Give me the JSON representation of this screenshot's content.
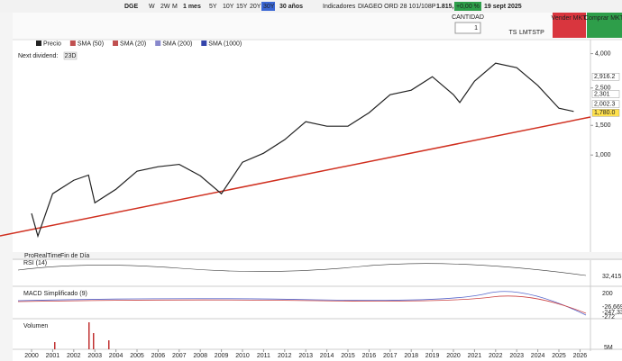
{
  "toolbar": {
    "symbol": "DGE",
    "periods": [
      "W",
      "2W",
      "M"
    ],
    "interval": "1 mes",
    "ranges": [
      "5Y",
      "10Y",
      "15Y",
      "20Y",
      "30Y"
    ],
    "range": "30 años",
    "indicators": "Indicadores"
  },
  "quote": {
    "name": "DIAGEO ORD 28 101/108P",
    "price": "1.815,5(c)",
    "change": "+0,00 %",
    "date": "19 sept 2025"
  },
  "order": {
    "qty_label": "CANTIDAD",
    "qty": "1",
    "types": [
      "TS",
      "LMT",
      "STP"
    ],
    "sell": "Vender MKT",
    "buy": "Comprar MKT"
  },
  "legend": [
    {
      "name": "Precio",
      "color": "#222"
    },
    {
      "name": "SMA (50)",
      "color": "#c05050"
    },
    {
      "name": "SMA (20)",
      "color": "#c05050"
    },
    {
      "name": "SMA (200)",
      "color": "#8888cc"
    },
    {
      "name": "SMA (1000)",
      "color": "#3344aa"
    }
  ],
  "dividend": {
    "label": "Next dividend:",
    "value": "23D"
  },
  "chart_data": {
    "type": "line",
    "log_scale": true,
    "color": "#222",
    "x": [
      2000,
      2000.3,
      2001,
      2002,
      2002.7,
      2003,
      2004,
      2005,
      2006,
      2007,
      2008,
      2009,
      2010,
      2011,
      2012,
      2013,
      2014,
      2015,
      2016,
      2017,
      2018,
      2019,
      2020,
      2020.3,
      2021,
      2022,
      2023,
      2024,
      2025,
      2025.7
    ],
    "values": [
      450,
      330,
      589,
      708,
      760,
      520,
      626,
      801,
      852,
      880,
      753,
      589,
      906,
      1025,
      1233,
      1577,
      1483,
      1483,
      1783,
      2282,
      2426,
      2918,
      2282,
      2050,
      2746,
      3510,
      3300,
      2587,
      1895,
      1815
    ],
    "xlim": [
      1999,
      2026.3
    ],
    "xticks": [
      2000,
      2001,
      2002,
      2003,
      2004,
      2005,
      2006,
      2007,
      2008,
      2009,
      2010,
      2011,
      2012,
      2013,
      2014,
      2015,
      2016,
      2017,
      2018,
      2019,
      2020,
      2021,
      2022,
      2023,
      2024,
      2025,
      2026
    ],
    "ylim": [
      300,
      4500
    ],
    "yticks": [
      {
        "value": 1000,
        "label": "1,000"
      },
      {
        "value": 1500,
        "label": "1,500"
      },
      {
        "value": 2500,
        "label": "2,500"
      },
      {
        "value": 4000,
        "label": "4,000"
      }
    ],
    "price_tags": [
      {
        "value": 2916.2,
        "label": "2,916.2"
      },
      {
        "value": 2301,
        "label": "2,301"
      },
      {
        "value": 2002.3,
        "label": "2,002.3"
      },
      {
        "value": 1780,
        "label": "1,780.0"
      }
    ]
  },
  "panels": {
    "source": "ProRealTime",
    "mode": "Fin de Día",
    "rsi": {
      "title": "RSI (14)",
      "tick": "32,415"
    },
    "macd": {
      "title": "MACD Simplificado (9)",
      "ticks": [
        "200",
        "-26,669",
        "-247,33",
        "-272"
      ]
    },
    "volume": {
      "title": "Volumen",
      "tick": "5M"
    }
  }
}
